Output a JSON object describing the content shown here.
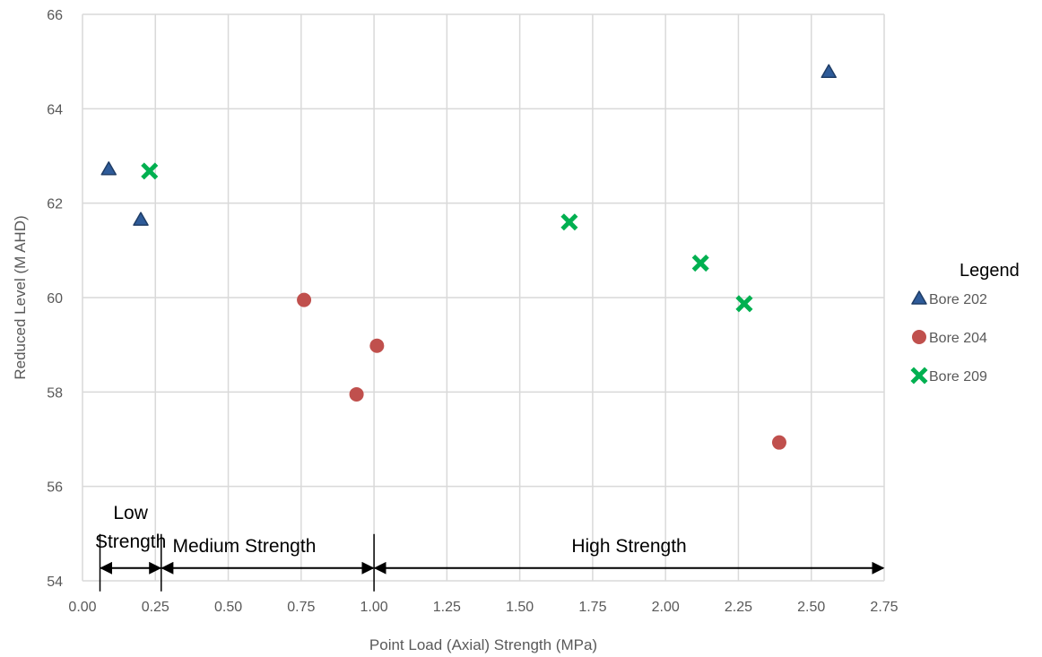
{
  "chart_data": {
    "type": "scatter",
    "xlabel": "Point Load (Axial) Strength (MPa)",
    "ylabel": "Reduced Level (M AHD)",
    "xlim": [
      0,
      2.75
    ],
    "ylim": [
      54,
      66
    ],
    "x_ticks": [
      "0.00",
      "0.25",
      "0.50",
      "0.75",
      "1.00",
      "1.25",
      "1.50",
      "1.75",
      "2.00",
      "2.25",
      "2.50",
      "2.75"
    ],
    "y_ticks": [
      "54",
      "56",
      "58",
      "60",
      "62",
      "64",
      "66"
    ],
    "grid": true,
    "legend_title": "Legend",
    "legend_position": "right",
    "series": [
      {
        "name": "Bore 202",
        "marker": "triangle",
        "color": "#2E5B99",
        "points": [
          {
            "x": 0.09,
            "y": 62.72
          },
          {
            "x": 0.2,
            "y": 61.65
          },
          {
            "x": 2.56,
            "y": 64.78
          }
        ]
      },
      {
        "name": "Bore 204",
        "marker": "circle",
        "color": "#C0504D",
        "points": [
          {
            "x": 0.76,
            "y": 59.95
          },
          {
            "x": 1.01,
            "y": 58.98
          },
          {
            "x": 0.94,
            "y": 57.95
          },
          {
            "x": 2.39,
            "y": 56.93
          }
        ]
      },
      {
        "name": "Bore 209",
        "marker": "cross",
        "color": "#00B050",
        "points": [
          {
            "x": 0.23,
            "y": 62.68
          },
          {
            "x": 1.67,
            "y": 61.6
          },
          {
            "x": 2.12,
            "y": 60.73
          },
          {
            "x": 2.27,
            "y": 59.87
          }
        ]
      }
    ],
    "annotations": [
      {
        "lines": [
          "Low",
          "Strength"
        ],
        "x_range": [
          0.06,
          0.27
        ],
        "y": 54.27
      },
      {
        "lines": [
          "Medium Strength"
        ],
        "x_range": [
          0.27,
          1.0
        ],
        "y": 54.27
      },
      {
        "lines": [
          "High Strength"
        ],
        "x_range": [
          1.0,
          2.75
        ],
        "y": 54.27
      }
    ]
  }
}
